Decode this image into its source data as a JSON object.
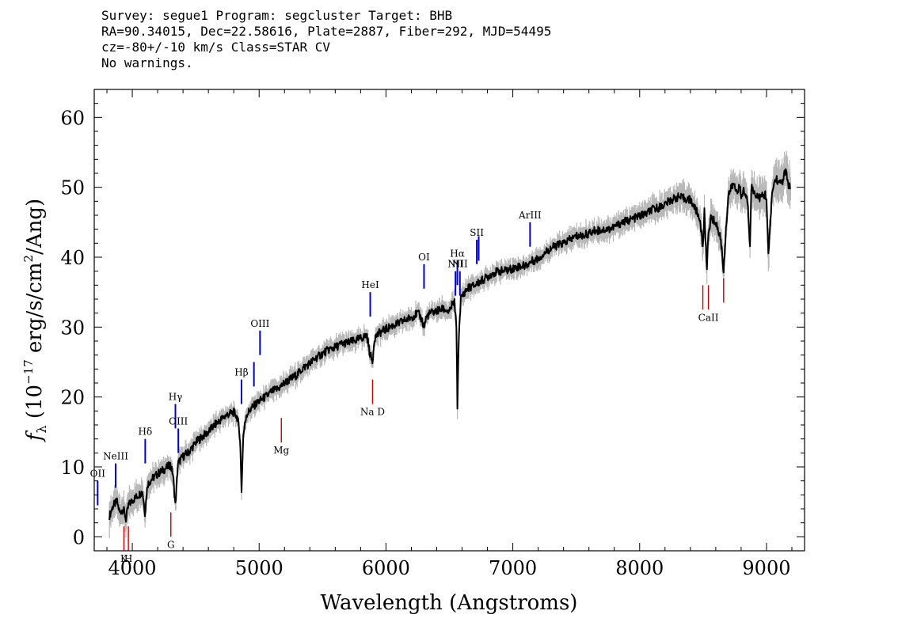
{
  "header": {
    "line1": "Survey: segue1 Program: segcluster Target: BHB",
    "line2": "RA=90.34015, Dec=22.58616, Plate=2887, Fiber=292, MJD=54495",
    "line3": "cz=-80+/-10 km/s Class=STAR CV",
    "line4": "No warnings."
  },
  "chart_data": {
    "type": "line",
    "xlabel": "Wavelength (Angstroms)",
    "ylabel": "f_λ (10^-17 erg/s/cm²/Ang)",
    "xlim": [
      3700,
      9300
    ],
    "ylim": [
      -2,
      64
    ],
    "x_ticks": [
      4000,
      5000,
      6000,
      7000,
      8000,
      9000
    ],
    "y_ticks": [
      0,
      10,
      20,
      30,
      40,
      50,
      60
    ],
    "grid": false,
    "colors": {
      "spectrum": "#000000",
      "error_band": "#b8b8b8",
      "emission_lines": "#0000c8",
      "absorption_lines": "#c80000"
    },
    "series": [
      {
        "x": [
          3820,
          3850,
          3880,
          3900,
          3930,
          3950,
          3970,
          4000,
          4050,
          4080,
          4100,
          4120,
          4150,
          4200,
          4250,
          4300,
          4320,
          4340,
          4360,
          4400,
          4450,
          4500,
          4550,
          4600,
          4650,
          4700,
          4750,
          4800,
          4830,
          4850,
          4861,
          4875,
          4900,
          4950,
          5000,
          5050,
          5100,
          5150,
          5200,
          5250,
          5300,
          5350,
          5400,
          5450,
          5500,
          5550,
          5600,
          5650,
          5700,
          5750,
          5800,
          5850,
          5870,
          5893,
          5910,
          5950,
          6000,
          6050,
          6100,
          6150,
          6200,
          6250,
          6280,
          6300,
          6320,
          6350,
          6400,
          6450,
          6480,
          6500,
          6520,
          6540,
          6555,
          6563,
          6575,
          6590,
          6620,
          6650,
          6700,
          6750,
          6800,
          6850,
          6900,
          6950,
          7000,
          7050,
          7100,
          7150,
          7200,
          7250,
          7300,
          7350,
          7400,
          7450,
          7500,
          7550,
          7600,
          7650,
          7700,
          7750,
          7800,
          7850,
          7900,
          7950,
          8000,
          8050,
          8100,
          8150,
          8200,
          8250,
          8300,
          8350,
          8400,
          8450,
          8480,
          8498,
          8510,
          8530,
          8542,
          8560,
          8600,
          8640,
          8662,
          8680,
          8700,
          8740,
          8760,
          8790,
          8800,
          8820,
          8850,
          8870,
          8880,
          8900,
          8950,
          8990,
          9000,
          9015,
          9040,
          9060,
          9080,
          9100,
          9130,
          9150,
          9170,
          9190
        ],
        "y": [
          3,
          4.5,
          5,
          3.5,
          4,
          2.5,
          4.5,
          5.2,
          6,
          6.5,
          3.5,
          7.5,
          8.2,
          9,
          9.6,
          10.3,
          9,
          4.5,
          10.5,
          11.5,
          12.2,
          13.5,
          14.3,
          15,
          16,
          16.8,
          17.5,
          17.8,
          17,
          14,
          6.5,
          14.5,
          17.5,
          18.6,
          19.4,
          20,
          20.8,
          21.2,
          22,
          22.6,
          23.2,
          24.2,
          24.8,
          25.6,
          26.2,
          26.8,
          27.1,
          27.6,
          27.8,
          28,
          28.4,
          28.8,
          26.5,
          25,
          28.5,
          29.2,
          29.7,
          30.2,
          30.5,
          31,
          31.4,
          32,
          31.2,
          30,
          31.5,
          32,
          32.3,
          32.6,
          32.4,
          32,
          33.2,
          33.5,
          30,
          18.8,
          29,
          34,
          35,
          35.6,
          36,
          36.6,
          37.2,
          37.8,
          38,
          38.1,
          38.4,
          38.7,
          38.8,
          39.4,
          39.8,
          40.6,
          41.3,
          41.7,
          42,
          42.5,
          43,
          43.1,
          43.4,
          43.8,
          43.9,
          44,
          44.3,
          44.9,
          45.2,
          45.5,
          45.9,
          46.2,
          46.8,
          47.1,
          47.6,
          48.2,
          48.6,
          48.4,
          48.2,
          46.5,
          45,
          41,
          46.5,
          38.5,
          43,
          45.6,
          45,
          42.5,
          38,
          44,
          49,
          50.5,
          49.5,
          50,
          48.5,
          49.6,
          48,
          42,
          50.2,
          49.2,
          48.5,
          49,
          48.5,
          40,
          48.2,
          50.8,
          51.2,
          50.5,
          51,
          52.5,
          50.5,
          49.8
        ],
        "error": [
          1.8,
          1.8,
          1.7,
          1.7,
          1.7,
          1.7,
          1.6,
          1.5,
          1.4,
          1.4,
          1.4,
          1.3,
          1.3,
          1.2,
          1.2,
          1.2,
          1.2,
          1.2,
          1.1,
          1.1,
          1.1,
          1.0,
          1.0,
          1.0,
          1.0,
          1.0,
          1.0,
          1.0,
          1.0,
          1.0,
          1.0,
          1.0,
          1.0,
          1.0,
          1.0,
          1.0,
          1.0,
          1.0,
          1.0,
          1.0,
          1.0,
          1.0,
          1.0,
          1.0,
          1.0,
          1.0,
          1.0,
          1.0,
          1.0,
          1.0,
          1.0,
          1.0,
          1.0,
          1.0,
          1.0,
          1.0,
          1.0,
          1.0,
          1.0,
          1.0,
          1.0,
          1.0,
          1.0,
          1.0,
          1.0,
          1.0,
          1.0,
          1.0,
          1.0,
          1.0,
          1.0,
          1.0,
          1.0,
          1.0,
          1.0,
          1.0,
          1.0,
          1.0,
          1.0,
          1.0,
          1.0,
          1.0,
          1.0,
          1.0,
          1.0,
          1.0,
          1.0,
          1.0,
          1.0,
          1.0,
          1.0,
          1.0,
          1.1,
          1.1,
          1.1,
          1.1,
          1.1,
          1.1,
          1.1,
          1.2,
          1.2,
          1.2,
          1.2,
          1.2,
          1.3,
          1.3,
          1.3,
          1.3,
          1.4,
          1.4,
          1.4,
          1.5,
          1.5,
          1.5,
          1.6,
          1.6,
          1.6,
          1.6,
          1.6,
          1.7,
          1.7,
          1.7,
          1.7,
          1.8,
          1.8,
          1.8,
          1.8,
          1.8,
          1.9,
          1.9,
          1.9,
          1.9,
          1.9,
          2.0,
          2.0,
          2.0,
          2.0,
          2.0,
          2.1,
          2.1,
          2.1,
          2.2,
          2.2,
          2.2,
          2.3,
          2.3
        ]
      }
    ],
    "emission_lines": [
      {
        "label": "OII",
        "wavelength": 3727,
        "y0": 4.5,
        "y1": 8
      },
      {
        "label": "NeIII",
        "wavelength": 3869,
        "y0": 7,
        "y1": 10.5
      },
      {
        "label": "Hδ",
        "wavelength": 4102,
        "y0": 10.5,
        "y1": 14
      },
      {
        "label": "Hγ",
        "wavelength": 4340,
        "y0": 15.5,
        "y1": 19
      },
      {
        "label": "OIII",
        "wavelength": 4363,
        "y0": 12,
        "y1": 15.5
      },
      {
        "label": "Hβ",
        "wavelength": 4861,
        "y0": 19,
        "y1": 22.5
      },
      {
        "label": "",
        "wavelength": 4959,
        "y0": 21.5,
        "y1": 25
      },
      {
        "label": "OIII",
        "wavelength": 5007,
        "y0": 26,
        "y1": 29.5
      },
      {
        "label": "HeI",
        "wavelength": 5876,
        "y0": 31.5,
        "y1": 35
      },
      {
        "label": "OI",
        "wavelength": 6300,
        "y0": 35.5,
        "y1": 39
      },
      {
        "label": "NII",
        "wavelength": 6548,
        "y0": 34.5,
        "y1": 38
      },
      {
        "label": "Hα",
        "wavelength": 6563,
        "y0": 36,
        "y1": 39.5
      },
      {
        "label": "NII",
        "wavelength": 6583,
        "y0": 34.5,
        "y1": 38
      },
      {
        "label": "SII",
        "wavelength": 6716,
        "y0": 39,
        "y1": 42.5
      },
      {
        "label": "",
        "wavelength": 6731,
        "y0": 39.5,
        "y1": 43
      },
      {
        "label": "ArIII",
        "wavelength": 7136,
        "y0": 41.5,
        "y1": 45
      }
    ],
    "absorption_lines": [
      {
        "label": "K",
        "wavelength": 3934,
        "y0": -2,
        "y1": 1.5
      },
      {
        "label": "H",
        "wavelength": 3969,
        "y0": -2,
        "y1": 1.5
      },
      {
        "label": "G",
        "wavelength": 4304,
        "y0": 0,
        "y1": 3.5
      },
      {
        "label": "Mg",
        "wavelength": 5175,
        "y0": 13.5,
        "y1": 17
      },
      {
        "label": "Na D",
        "wavelength": 5894,
        "y0": 19,
        "y1": 22.5
      },
      {
        "label": "",
        "wavelength": 8498,
        "y0": 32.5,
        "y1": 36
      },
      {
        "label": "CaII",
        "wavelength": 8542,
        "y0": 32.5,
        "y1": 36
      },
      {
        "label": "",
        "wavelength": 8662,
        "y0": 33.5,
        "y1": 37
      }
    ]
  }
}
